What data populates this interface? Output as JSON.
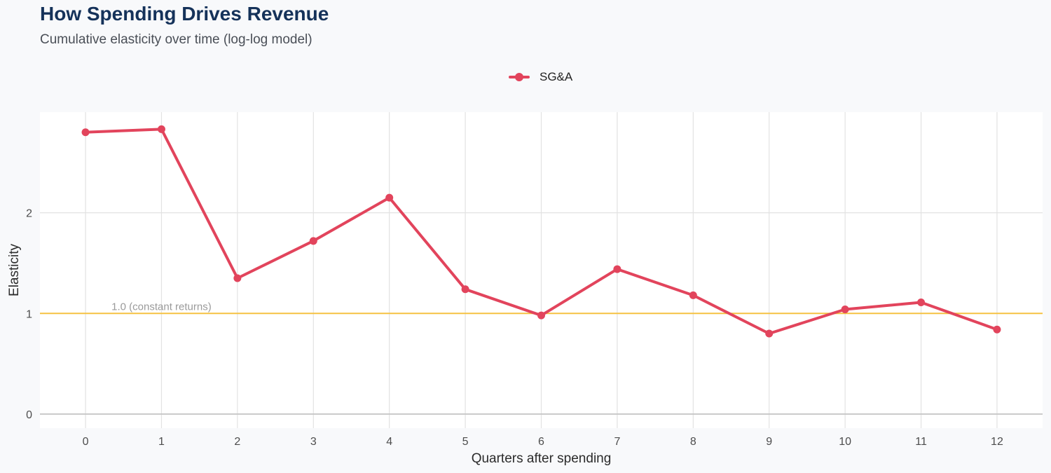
{
  "header": {
    "title": "How Spending Drives Revenue",
    "subtitle": "Cumulative elasticity over time (log-log model)"
  },
  "colors": {
    "series": "#e2445c",
    "reference": "#f5c242",
    "grid": "#e2e2e2",
    "panel": "#ffffff",
    "background": "#f8f9fb",
    "title": "#15325a"
  },
  "chart_data": {
    "type": "line",
    "title": "How Spending Drives Revenue",
    "subtitle": "Cumulative elasticity over time (log-log model)",
    "xlabel": "Quarters after spending",
    "ylabel": "Elasticity",
    "x": [
      0,
      1,
      2,
      3,
      4,
      5,
      6,
      7,
      8,
      9,
      10,
      11,
      12
    ],
    "series": [
      {
        "name": "SG&A",
        "values": [
          2.8,
          2.83,
          1.35,
          1.72,
          2.15,
          1.24,
          0.98,
          1.44,
          1.18,
          0.8,
          1.04,
          1.11,
          0.84
        ]
      }
    ],
    "xlim": [
      -0.6,
      12.6
    ],
    "ylim": [
      -0.14,
      3.0
    ],
    "x_ticks": [
      0,
      1,
      2,
      3,
      4,
      5,
      6,
      7,
      8,
      9,
      10,
      11,
      12
    ],
    "y_ticks": [
      0,
      1,
      2
    ],
    "reference_line": {
      "y": 1.0,
      "label": "1.0 (constant returns)"
    },
    "grid": true,
    "legend_position": "top"
  }
}
